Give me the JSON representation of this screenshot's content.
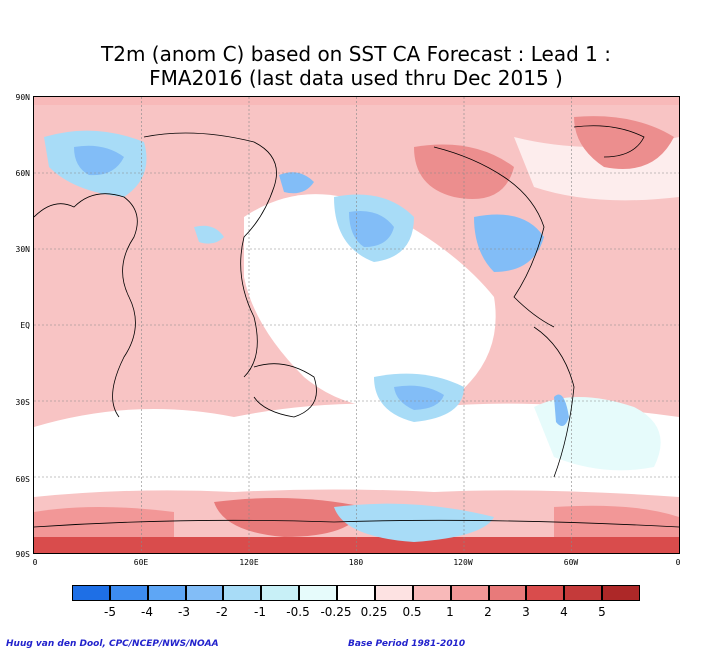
{
  "title_line1": "T2m (anom C) based on SST CA Forecast : Lead 1 :",
  "title_line2": "FMA2016 (last data used thru Dec 2015 )",
  "lat_labels": [
    "90N",
    "60N",
    "30N",
    "EQ",
    "30S",
    "60S",
    "90S"
  ],
  "lon_labels": [
    "0",
    "60E",
    "120E",
    "180",
    "120W",
    "60W",
    "0"
  ],
  "colorbar": {
    "labels": [
      "-5",
      "-4",
      "-3",
      "-2",
      "-1",
      "-0.5",
      "-0.25",
      "0.25",
      "0.5",
      "1",
      "2",
      "3",
      "4",
      "5"
    ],
    "colors": [
      "#1e6fe6",
      "#3d8cf0",
      "#5ea6f5",
      "#82bdf7",
      "#a8dcf7",
      "#c8f0f7",
      "#e6fbfb",
      "#ffffff",
      "#fde2e2",
      "#f8b9b9",
      "#f29797",
      "#e87a7a",
      "#d94c4c",
      "#c43a3a",
      "#ad2828"
    ]
  },
  "credit_left": "Huug van den Dool, CPC/NCEP/NWS/NOAA",
  "credit_right": "Base Period 1981-2010"
}
